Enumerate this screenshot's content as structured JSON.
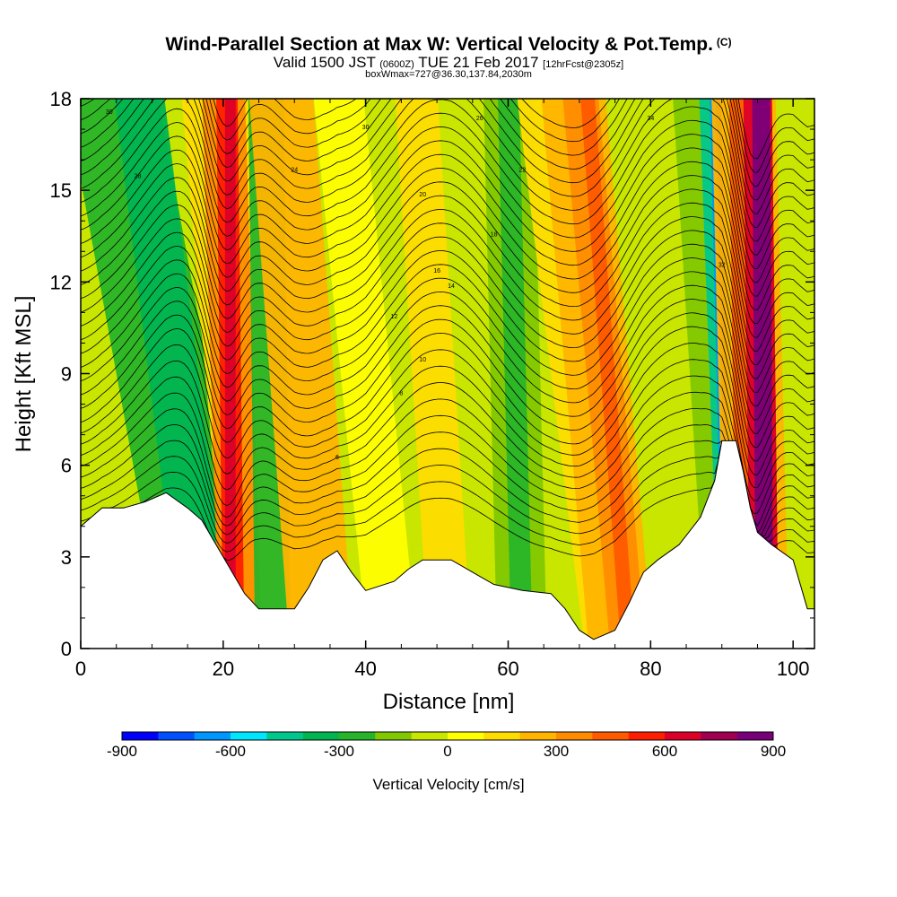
{
  "title": {
    "main": "Wind-Parallel Section at Max W: Vertical Velocity & Pot.Temp.",
    "tag": "(C)",
    "valid_prefix": "Valid 1500 JST",
    "valid_utc": "(0600Z)",
    "valid_date": "TUE 21 Feb 2017",
    "fcst": "[12hrFcst@2305z]",
    "boxinfo": "boxWmax=727@36.30,137.84,2030m"
  },
  "chart_data": {
    "type": "heatmap",
    "xlabel": "Distance [nm]",
    "ylabel": "Height [Kft MSL]",
    "xlim": [
      0,
      103
    ],
    "ylim": [
      0,
      18
    ],
    "xticks": [
      0,
      20,
      40,
      60,
      80,
      100
    ],
    "yticks": [
      0,
      3,
      6,
      9,
      12,
      15,
      18
    ],
    "colorbar": {
      "label": "Vertical Velocity [cm/s]",
      "ticks": [
        -900,
        -600,
        -300,
        0,
        300,
        600,
        900
      ],
      "colors": [
        "#0000ff",
        "#0050ff",
        "#0096ff",
        "#00e6ff",
        "#00c88c",
        "#00b450",
        "#28b428",
        "#82c800",
        "#c8e600",
        "#ffff00",
        "#ffdc00",
        "#ffb400",
        "#ff8c00",
        "#ff5a00",
        "#ff1e00",
        "#dc0028",
        "#a00050",
        "#780078"
      ]
    },
    "terrain": [
      [
        0,
        4
      ],
      [
        3,
        4.6
      ],
      [
        6,
        4.6
      ],
      [
        9,
        4.8
      ],
      [
        12,
        5.1
      ],
      [
        15,
        4.6
      ],
      [
        17,
        4.2
      ],
      [
        19,
        3.4
      ],
      [
        21,
        2.6
      ],
      [
        23,
        1.8
      ],
      [
        25,
        1.3
      ],
      [
        30,
        1.3
      ],
      [
        32,
        2.0
      ],
      [
        34,
        2.9
      ],
      [
        36,
        3.2
      ],
      [
        38,
        2.5
      ],
      [
        40,
        1.9
      ],
      [
        44,
        2.2
      ],
      [
        46,
        2.6
      ],
      [
        48,
        2.9
      ],
      [
        52,
        2.9
      ],
      [
        55,
        2.5
      ],
      [
        58,
        2.1
      ],
      [
        62,
        1.9
      ],
      [
        66,
        1.8
      ],
      [
        68,
        1.3
      ],
      [
        70,
        0.6
      ],
      [
        72,
        0.3
      ],
      [
        75,
        0.6
      ],
      [
        77,
        1.5
      ],
      [
        79,
        2.5
      ],
      [
        81,
        2.9
      ],
      [
        84,
        3.4
      ],
      [
        87,
        4.3
      ],
      [
        89,
        5.5
      ],
      [
        90,
        6.8
      ],
      [
        92,
        6.8
      ],
      [
        93,
        5.8
      ],
      [
        94,
        4.6
      ],
      [
        95,
        3.8
      ],
      [
        97,
        3.4
      ],
      [
        100,
        2.9
      ],
      [
        102,
        1.3
      ],
      [
        103,
        1.3
      ]
    ],
    "theta_labels": [
      "30",
      "30",
      "28",
      "26",
      "24",
      "22",
      "20",
      "18",
      "16",
      "14",
      "12",
      "10",
      "8",
      "6",
      "34",
      "32"
    ]
  },
  "colors": {
    "frame": "#000000",
    "terrain": "#ffffff"
  }
}
